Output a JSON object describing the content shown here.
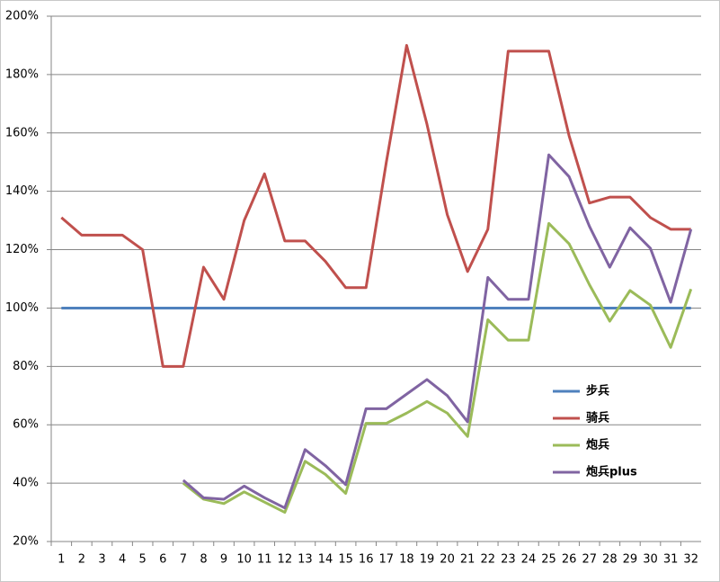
{
  "chart_data": {
    "type": "line",
    "categories": [
      "1",
      "2",
      "3",
      "4",
      "5",
      "6",
      "7",
      "8",
      "9",
      "10",
      "11",
      "12",
      "13",
      "14",
      "15",
      "16",
      "17",
      "18",
      "19",
      "20",
      "21",
      "22",
      "23",
      "24",
      "25",
      "26",
      "27",
      "28",
      "29",
      "30",
      "31",
      "32"
    ],
    "series": [
      {
        "name": "步兵",
        "color": "#4f81bd",
        "values": [
          100,
          100,
          100,
          100,
          100,
          100,
          100,
          100,
          100,
          100,
          100,
          100,
          100,
          100,
          100,
          100,
          100,
          100,
          100,
          100,
          100,
          100,
          100,
          100,
          100,
          100,
          100,
          100,
          100,
          100,
          100,
          100
        ]
      },
      {
        "name": "骑兵",
        "color": "#c0504d",
        "values": [
          131,
          125,
          125,
          125,
          120,
          80,
          80,
          114,
          103,
          130,
          146,
          123,
          123,
          116,
          107,
          107,
          150,
          190,
          163,
          132,
          112.5,
          127,
          188,
          188,
          188,
          159,
          136,
          138,
          138,
          131,
          127,
          127
        ]
      },
      {
        "name": "炮兵",
        "color": "#9bbb59",
        "values": [
          null,
          null,
          null,
          null,
          null,
          null,
          40,
          34.5,
          33,
          37,
          33.5,
          30,
          47.5,
          43,
          36.5,
          60.5,
          60.5,
          64,
          68,
          64,
          56,
          96,
          89,
          89,
          129,
          122,
          108,
          95.5,
          106,
          101,
          86.5,
          106.5
        ]
      },
      {
        "name": "炮兵plus",
        "color": "#8064a2",
        "values": [
          null,
          null,
          null,
          null,
          null,
          null,
          41,
          35,
          34.5,
          39,
          35,
          31.5,
          51.5,
          46,
          39.5,
          65.5,
          65.5,
          70.5,
          75.5,
          70,
          61,
          110.5,
          103,
          103,
          152.5,
          145,
          128,
          114,
          127.5,
          120.5,
          102,
          127
        ]
      }
    ],
    "ylim": [
      20,
      200
    ],
    "yticks": [
      {
        "value": 20,
        "label": "20%"
      },
      {
        "value": 40,
        "label": "40%"
      },
      {
        "value": 60,
        "label": "60%"
      },
      {
        "value": 80,
        "label": "80%"
      },
      {
        "value": 100,
        "label": "100%"
      },
      {
        "value": 120,
        "label": "120%"
      },
      {
        "value": 140,
        "label": "140%"
      },
      {
        "value": 160,
        "label": "160%"
      },
      {
        "value": 180,
        "label": "180%"
      },
      {
        "value": 200,
        "label": "200%"
      }
    ],
    "grid": true,
    "legend": "right"
  }
}
